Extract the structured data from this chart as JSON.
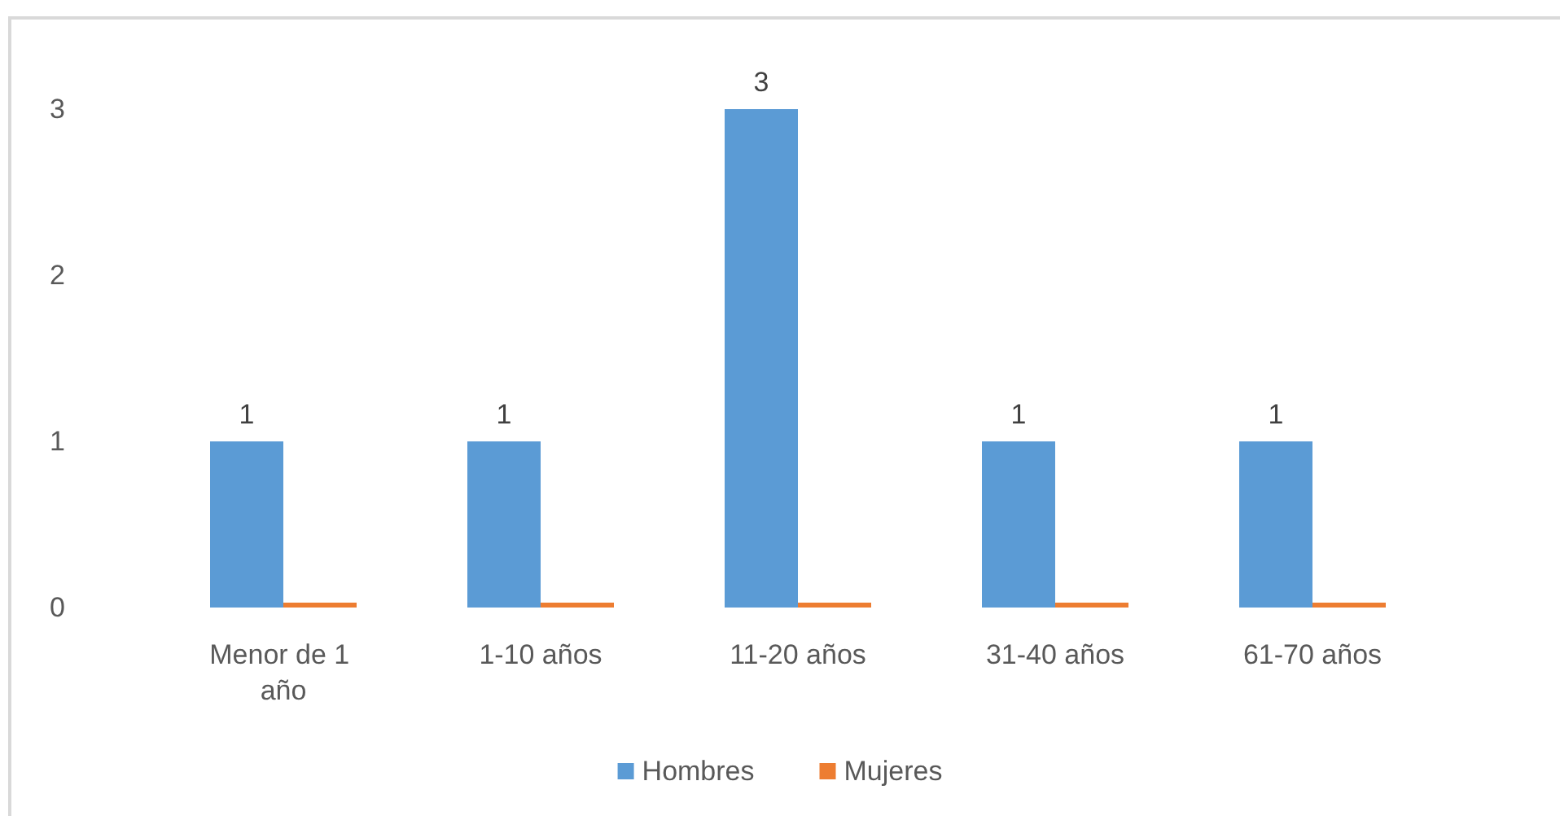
{
  "chart_data": {
    "type": "bar",
    "categories": [
      "Menor de 1 año",
      "1-10 años",
      "11-20 años",
      "31-40 años",
      "61-70 años"
    ],
    "series": [
      {
        "name": "Hombres",
        "color": "#5b9bd5",
        "values": [
          1,
          1,
          3,
          1,
          1
        ],
        "value_labels": [
          "1",
          "1",
          "3",
          "1",
          "1"
        ]
      },
      {
        "name": "Mujeres",
        "color": "#ed7d31",
        "values": [
          0,
          0,
          0,
          0,
          0
        ]
      }
    ],
    "ylim": [
      0,
      3
    ],
    "yticks": [
      0,
      1,
      2,
      3
    ],
    "grid": false,
    "legend": "bottom"
  }
}
